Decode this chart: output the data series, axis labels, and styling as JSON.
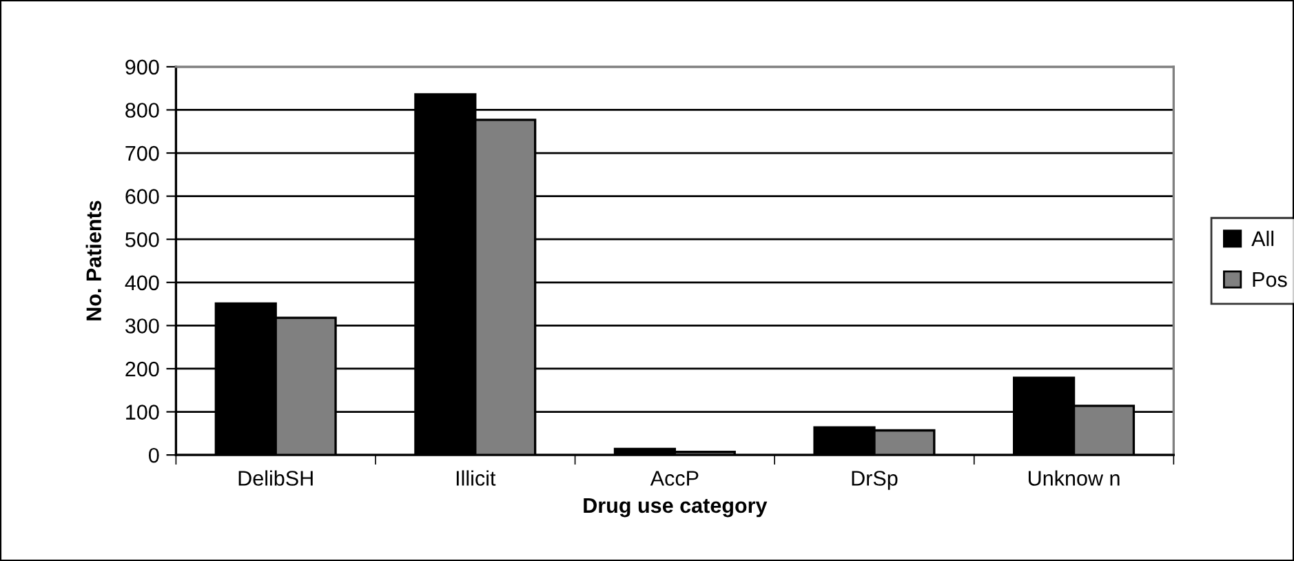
{
  "chart_data": {
    "type": "bar",
    "xlabel": "Drug use category",
    "ylabel": "No. Patients",
    "categories": [
      "DelibSH",
      "Illicit",
      "AccP",
      "DrSp",
      "Unknow n"
    ],
    "series": [
      {
        "name": "All",
        "color": "#000000",
        "values": [
          351,
          836,
          14,
          64,
          179
        ]
      },
      {
        "name": "Pos",
        "color": "#808080",
        "values": [
          318,
          777,
          7,
          57,
          114
        ]
      }
    ],
    "ylim": [
      0,
      900
    ],
    "yticks": [
      0,
      100,
      200,
      300,
      400,
      500,
      600,
      700,
      800,
      900
    ],
    "grid": "y",
    "legend": "right"
  }
}
